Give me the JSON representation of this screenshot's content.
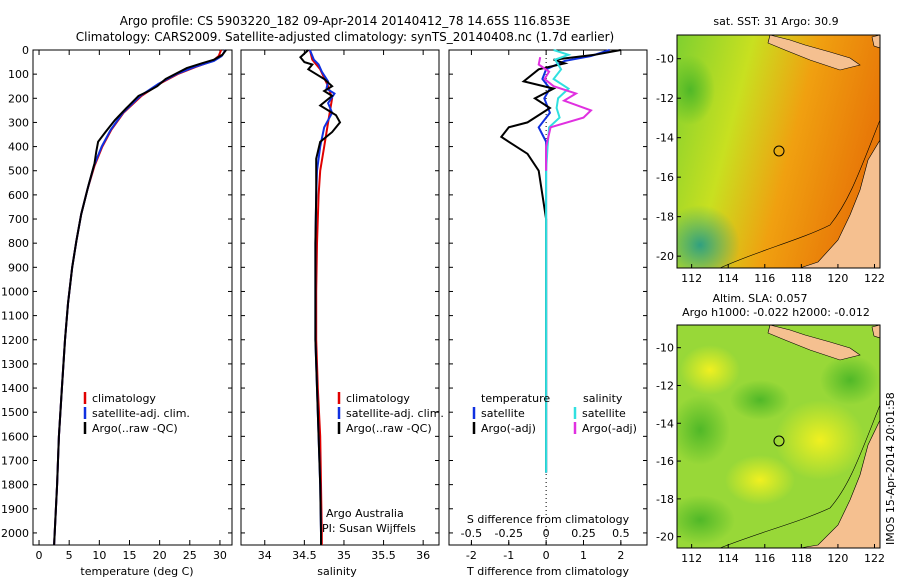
{
  "title": {
    "line1": "Argo profile: CS 5903220_182 09-Apr-2014 20140412_78 14.65S 116.853E",
    "line2": "Climatology: CARS2009. Satellite-adjusted climatology: synTS_20140408.nc (1.7d earlier)"
  },
  "colors": {
    "climatology": "#e00000",
    "satellite": "#1030e0",
    "argo": "#000000",
    "sat_sal": "#30e0e0",
    "argo_sal": "#e030e0"
  },
  "chart_data": [
    {
      "type": "line",
      "id": "temperature",
      "xlabel": "temperature (deg C)",
      "ylabel": "",
      "xlim": [
        -1,
        32
      ],
      "ylim": [
        2050,
        0
      ],
      "xticks": [
        "0",
        "5",
        "10",
        "15",
        "20",
        "25",
        "30"
      ],
      "yticks": [
        "0",
        "100",
        "200",
        "300",
        "400",
        "500",
        "600",
        "700",
        "800",
        "900",
        "1000",
        "1100",
        "1200",
        "1300",
        "1400",
        "1500",
        "1600",
        "1700",
        "1800",
        "1900",
        "2000"
      ],
      "legend": {
        "placement": "lower-center",
        "items": [
          "climatology",
          "satellite-adj. clim.",
          "Argo(..raw -QC)"
        ]
      },
      "series": [
        {
          "name": "climatology",
          "points": [
            [
              30.2,
              0
            ],
            [
              29.8,
              25
            ],
            [
              28.8,
              45
            ],
            [
              26,
              70
            ],
            [
              23,
              100
            ],
            [
              20,
              140
            ],
            [
              17,
              190
            ],
            [
              14,
              260
            ],
            [
              12,
              330
            ],
            [
              10.5,
              400
            ],
            [
              9.2,
              480
            ],
            [
              8,
              580
            ],
            [
              7,
              680
            ],
            [
              6.2,
              790
            ],
            [
              5.5,
              900
            ],
            [
              4.8,
              1050
            ],
            [
              4.3,
              1200
            ],
            [
              3.8,
              1400
            ],
            [
              3.3,
              1600
            ],
            [
              3,
              1800
            ],
            [
              2.6,
              2000
            ],
            [
              2.5,
              2050
            ]
          ]
        },
        {
          "name": "satellite",
          "points": [
            [
              30.9,
              0
            ],
            [
              30.3,
              25
            ],
            [
              29,
              45
            ],
            [
              25.8,
              70
            ],
            [
              22.8,
              100
            ],
            [
              19.8,
              140
            ],
            [
              16.8,
              190
            ],
            [
              13.9,
              260
            ],
            [
              11.9,
              330
            ],
            [
              10.4,
              400
            ],
            [
              9.1,
              480
            ],
            [
              8,
              580
            ],
            [
              7,
              680
            ],
            [
              6.2,
              790
            ],
            [
              5.5,
              900
            ],
            [
              4.8,
              1050
            ],
            [
              4.3,
              1200
            ],
            [
              3.8,
              1400
            ],
            [
              3.3,
              1600
            ],
            [
              3,
              1800
            ],
            [
              2.6,
              2000
            ],
            [
              2.5,
              2050
            ]
          ]
        },
        {
          "name": "Argo(..raw -QC)",
          "points": [
            [
              31,
              0
            ],
            [
              30.4,
              20
            ],
            [
              29,
              40
            ],
            [
              27,
              55
            ],
            [
              24.5,
              75
            ],
            [
              21,
              120
            ],
            [
              19.6,
              150
            ],
            [
              18.2,
              170
            ],
            [
              16.5,
              190
            ],
            [
              14.5,
              240
            ],
            [
              12.6,
              290
            ],
            [
              11,
              340
            ],
            [
              9.8,
              380
            ],
            [
              9.5,
              420
            ],
            [
              9.2,
              470
            ],
            [
              8.2,
              560
            ],
            [
              7,
              680
            ],
            [
              6.2,
              790
            ],
            [
              5.5,
              900
            ],
            [
              4.8,
              1050
            ],
            [
              4.3,
              1200
            ],
            [
              3.8,
              1400
            ],
            [
              3.3,
              1600
            ],
            [
              3,
              1800
            ],
            [
              2.6,
              2000
            ],
            [
              2.5,
              2050
            ]
          ]
        }
      ]
    },
    {
      "type": "line",
      "id": "salinity",
      "xlabel": "salinity",
      "ylabel": "",
      "xlim": [
        33.7,
        36.2
      ],
      "ylim": [
        2050,
        0
      ],
      "xticks": [
        "34",
        "34.5",
        "35",
        "35.5",
        "36"
      ],
      "legend": {
        "placement": "lower-center",
        "items": [
          "climatology",
          "satellite-adj. clim.",
          "Argo(..raw -QC)"
        ]
      },
      "annotation": [
        "Argo Australia",
        "PI: Susan Wijffels"
      ],
      "series": [
        {
          "name": "climatology",
          "points": [
            [
              34.57,
              0
            ],
            [
              34.6,
              40
            ],
            [
              34.7,
              80
            ],
            [
              34.8,
              150
            ],
            [
              34.85,
              200
            ],
            [
              34.8,
              300
            ],
            [
              34.75,
              400
            ],
            [
              34.7,
              500
            ],
            [
              34.68,
              600
            ],
            [
              34.66,
              800
            ],
            [
              34.65,
              1000
            ],
            [
              34.65,
              1200
            ],
            [
              34.67,
              1400
            ],
            [
              34.7,
              1600
            ],
            [
              34.71,
              1800
            ],
            [
              34.72,
              2000
            ],
            [
              34.72,
              2050
            ]
          ]
        },
        {
          "name": "satellite",
          "points": [
            [
              34.57,
              0
            ],
            [
              34.62,
              40
            ],
            [
              34.68,
              60
            ],
            [
              34.72,
              90
            ],
            [
              34.8,
              130
            ],
            [
              34.78,
              160
            ],
            [
              34.88,
              180
            ],
            [
              34.8,
              220
            ],
            [
              34.85,
              260
            ],
            [
              34.75,
              320
            ],
            [
              34.7,
              400
            ],
            [
              34.66,
              500
            ],
            [
              34.65,
              600
            ],
            [
              34.64,
              800
            ],
            [
              34.64,
              1000
            ],
            [
              34.64,
              1200
            ],
            [
              34.66,
              1400
            ],
            [
              34.68,
              1600
            ],
            [
              34.7,
              1800
            ],
            [
              34.71,
              2000
            ],
            [
              34.71,
              2050
            ]
          ]
        },
        {
          "name": "Argo(..raw -QC)",
          "points": [
            [
              34.55,
              0
            ],
            [
              34.45,
              30
            ],
            [
              34.5,
              50
            ],
            [
              34.6,
              60
            ],
            [
              34.55,
              80
            ],
            [
              34.75,
              120
            ],
            [
              34.85,
              150
            ],
            [
              34.75,
              170
            ],
            [
              34.85,
              190
            ],
            [
              34.7,
              230
            ],
            [
              34.9,
              270
            ],
            [
              34.95,
              300
            ],
            [
              34.85,
              340
            ],
            [
              34.7,
              380
            ],
            [
              34.65,
              450
            ],
            [
              34.65,
              510
            ],
            [
              34.65,
              600
            ],
            [
              34.64,
              800
            ],
            [
              34.64,
              1000
            ],
            [
              34.64,
              1200
            ],
            [
              34.66,
              1400
            ],
            [
              34.68,
              1600
            ],
            [
              34.7,
              1800
            ],
            [
              34.71,
              2000
            ],
            [
              34.71,
              2050
            ]
          ]
        }
      ]
    },
    {
      "type": "line",
      "id": "difference",
      "xlabel": "T difference from climatology",
      "xlabel2": "S difference from climatology",
      "xlim": [
        -2.6,
        2.7
      ],
      "ylim": [
        2050,
        0
      ],
      "xticks": [
        "-2",
        "-1",
        "0",
        "1",
        "2"
      ],
      "xticks_top": [
        "-0.5",
        "-0.25",
        "0",
        "0.25",
        "0.5"
      ],
      "legend": {
        "placement": "lower-center",
        "temperature": {
          "title": "temperature",
          "items": [
            "satellite",
            "Argo(-adj)"
          ]
        },
        "salinity": {
          "title": "salinity",
          "items": [
            "satellite",
            "Argo(-adj)"
          ]
        }
      },
      "series": [
        {
          "name": "T satellite",
          "points": [
            [
              1.7,
              0
            ],
            [
              1.2,
              25
            ],
            [
              0.5,
              45
            ],
            [
              0,
              80
            ],
            [
              -0.1,
              120
            ],
            [
              0.1,
              160
            ],
            [
              -0.05,
              200
            ],
            [
              0.1,
              260
            ],
            [
              -0.2,
              320
            ],
            [
              0,
              380
            ],
            [
              0,
              500
            ],
            [
              0,
              1000
            ],
            [
              0,
              1500
            ],
            [
              0,
              1750
            ]
          ]
        },
        {
          "name": "T Argo(-adj)",
          "points": [
            [
              2,
              0
            ],
            [
              1.3,
              20
            ],
            [
              0.2,
              40
            ],
            [
              0.5,
              55
            ],
            [
              -0.2,
              80
            ],
            [
              -0.6,
              130
            ],
            [
              0.2,
              160
            ],
            [
              -0.3,
              200
            ],
            [
              0.1,
              240
            ],
            [
              -0.5,
              300
            ],
            [
              -1,
              320
            ],
            [
              -1.2,
              360
            ],
            [
              -0.9,
              390
            ],
            [
              -0.5,
              430
            ],
            [
              -0.2,
              500
            ],
            [
              -0.1,
              600
            ],
            [
              0,
              700
            ],
            [
              0,
              800
            ],
            [
              0,
              1000
            ],
            [
              0,
              1500
            ],
            [
              0,
              1750
            ]
          ]
        },
        {
          "name": "S satellite",
          "points": [
            [
              0.05,
              0
            ],
            [
              0.15,
              20
            ],
            [
              0.06,
              40
            ],
            [
              0.1,
              80
            ],
            [
              0.05,
              120
            ],
            [
              0.15,
              160
            ],
            [
              0.08,
              200
            ],
            [
              0.07,
              240
            ],
            [
              0.09,
              280
            ],
            [
              0.02,
              320
            ],
            [
              0.01,
              400
            ],
            [
              0,
              500
            ],
            [
              0,
              1000
            ],
            [
              0,
              1500
            ],
            [
              0,
              1750
            ]
          ]
        },
        {
          "name": "S Argo(-adj)",
          "points": [
            [
              -0.04,
              30
            ],
            [
              -0.05,
              60
            ],
            [
              0.02,
              90
            ],
            [
              -0.01,
              120
            ],
            [
              0.05,
              150
            ],
            [
              0.2,
              180
            ],
            [
              0.12,
              210
            ],
            [
              0.3,
              250
            ],
            [
              0.25,
              280
            ],
            [
              0.03,
              320
            ],
            [
              0,
              400
            ],
            [
              0,
              500
            ]
          ]
        }
      ]
    },
    {
      "type": "heatmap",
      "id": "sst_map",
      "title": "sat. SST: 31  Argo: 30.9",
      "xticks": [
        "112",
        "114",
        "116",
        "118",
        "120",
        "122"
      ],
      "yticks": [
        "-10",
        "-12",
        "-14",
        "-16",
        "-18",
        "-20"
      ],
      "xlim": [
        111.2,
        122.3
      ],
      "ylim": [
        -20.6,
        -8.8
      ],
      "marker": {
        "lon": 116.853,
        "lat": -14.65
      }
    },
    {
      "type": "heatmap",
      "id": "sla_map",
      "title": "Altim. SLA: 0.057",
      "subtitle": "Argo h1000: -0.022 h2000: -0.012",
      "xticks": [
        "112",
        "114",
        "116",
        "118",
        "120",
        "122"
      ],
      "yticks": [
        "-10",
        "-12",
        "-14",
        "-16",
        "-18",
        "-20"
      ],
      "xlim": [
        111.2,
        122.3
      ],
      "ylim": [
        -20.6,
        -8.8
      ],
      "marker": {
        "lon": 116.853,
        "lat": -14.65
      }
    }
  ],
  "stamp": "IMOS 15-Apr-2014 20:01:58"
}
